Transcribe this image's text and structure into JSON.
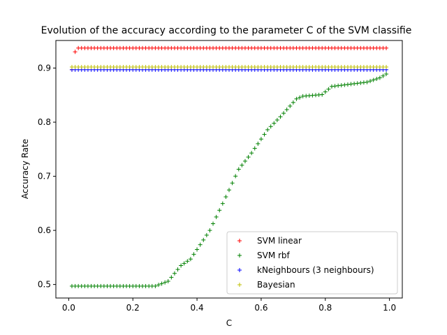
{
  "chart_data": {
    "type": "scatter",
    "title": "Evolution of the accuracy according to the parameter C of the SVM classifie",
    "xlabel": "C",
    "ylabel": "Accuracy Rate",
    "xlim": [
      -0.04,
      1.04
    ],
    "ylim": [
      0.475,
      0.951
    ],
    "xticks": [
      0.0,
      0.2,
      0.4,
      0.6,
      0.8,
      1.0
    ],
    "xtick_labels": [
      "0.0",
      "0.2",
      "0.4",
      "0.6",
      "0.8",
      "1.0"
    ],
    "yticks": [
      0.5,
      0.6,
      0.7,
      0.8,
      0.9
    ],
    "ytick_labels": [
      "0.5",
      "0.6",
      "0.7",
      "0.8",
      "0.9"
    ],
    "grid": false,
    "legend_position": "lower-right",
    "marker": "+",
    "x_range": {
      "start": 0.01,
      "stop": 0.99,
      "step": 0.01
    },
    "series": [
      {
        "name": "SVM linear",
        "color": "#ff0000",
        "pattern": "first two points then constant",
        "first_values": [
          0.897,
          0.93
        ],
        "constant_value": 0.937
      },
      {
        "name": "SVM rbf",
        "color": "#008000",
        "pattern": "piecewise linear trend",
        "knots": [
          [
            0.01,
            0.497
          ],
          [
            0.27,
            0.497
          ],
          [
            0.31,
            0.506
          ],
          [
            0.35,
            0.535
          ],
          [
            0.38,
            0.547
          ],
          [
            0.44,
            0.6
          ],
          [
            0.49,
            0.662
          ],
          [
            0.53,
            0.713
          ],
          [
            0.57,
            0.743
          ],
          [
            0.62,
            0.786
          ],
          [
            0.66,
            0.81
          ],
          [
            0.71,
            0.843
          ],
          [
            0.73,
            0.848
          ],
          [
            0.79,
            0.851
          ],
          [
            0.82,
            0.866
          ],
          [
            0.93,
            0.874
          ],
          [
            0.97,
            0.882
          ],
          [
            0.99,
            0.889
          ]
        ]
      },
      {
        "name": "kNeighbours (3 neighbours)",
        "color": "#0000ff",
        "pattern": "constant",
        "constant_value": 0.897
      },
      {
        "name": "Bayesian",
        "color": "#bfbf00",
        "pattern": "constant",
        "constant_value": 0.902
      }
    ]
  }
}
